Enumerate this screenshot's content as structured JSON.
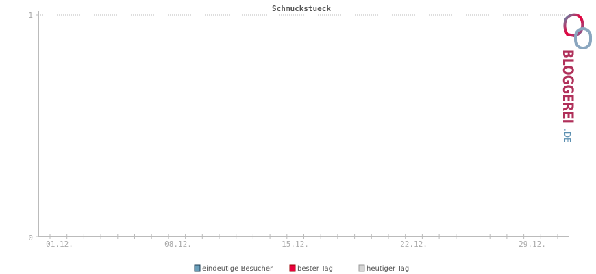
{
  "chart_data": {
    "type": "line",
    "title": "Schmuckstueck",
    "xlabel": "",
    "ylabel": "",
    "x_tick_labels": [
      "01.12.",
      "08.12.",
      "15.12.",
      "22.12.",
      "29.12."
    ],
    "x_days": 31,
    "y_tick_labels": [
      "0",
      "1"
    ],
    "ylim": [
      0,
      1
    ],
    "grid": "dotted line at y = 1 only",
    "series": [],
    "legend": {
      "placement": "bottom",
      "items": [
        {
          "label": "eindeutige Besucher",
          "color": "#6a9fba"
        },
        {
          "label": "bester Tag",
          "color": "#e8003c"
        },
        {
          "label": "heutiger Tag",
          "color": "#d6d6d6"
        }
      ]
    }
  },
  "logo": {
    "text": "BLOGGEREI.DE"
  }
}
